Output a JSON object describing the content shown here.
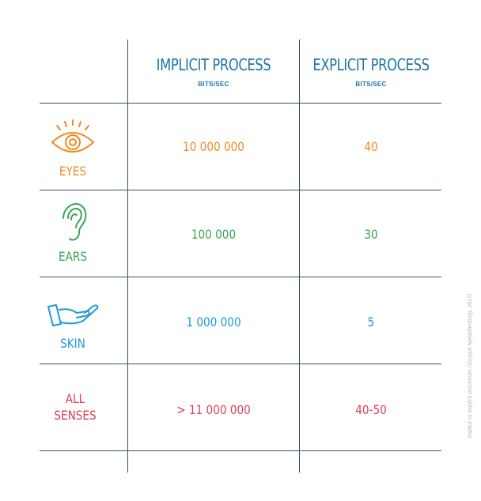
{
  "columns": {
    "implicit": {
      "title": "IMPLICIT PROCESS",
      "unit": "BITS/SEC"
    },
    "explicit": {
      "title": "EXPLICIT PROCESS",
      "unit": "BITS/SEC"
    }
  },
  "rows": [
    {
      "label": "EYES",
      "icon": "eye-icon",
      "implicit": "10 000 000",
      "explicit": "40",
      "color": "#ef8a1d"
    },
    {
      "label": "EARS",
      "icon": "ear-icon",
      "implicit": "100 000",
      "explicit": "30",
      "color": "#38a552"
    },
    {
      "label": "SKIN",
      "icon": "hand-icon",
      "implicit": "1 000 000",
      "explicit": "5",
      "color": "#1d9ad6"
    },
    {
      "label_line1": "ALL",
      "label_line2": "SENSES",
      "implicit": "> 11 000 000",
      "explicit": "40-50",
      "color": "#d93f55"
    }
  ],
  "credit": "Implicit vs explicit processes (Gruppe Nymphenburg, 2017)"
}
